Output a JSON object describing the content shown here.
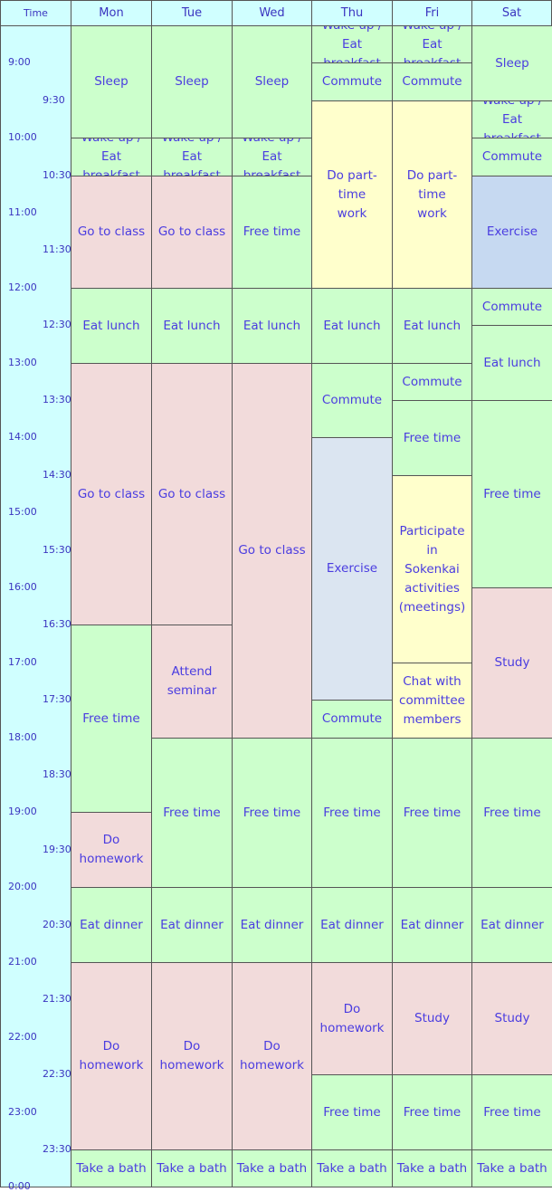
{
  "header": {
    "time_label": "Time",
    "days": [
      "Mon",
      "Tue",
      "Wed",
      "Thu",
      "Fri",
      "Sat"
    ]
  },
  "time_labels": [
    "9:00",
    "9:30",
    "10:00",
    "10:30",
    "11:00",
    "11:30",
    "12:00",
    "12:30",
    "13:00",
    "13:30",
    "14:00",
    "14:30",
    "15:00",
    "15:30",
    "16:00",
    "16:30",
    "17:00",
    "17:30",
    "18:00",
    "18:30",
    "19:00",
    "19:30",
    "20:00",
    "20:30",
    "21:00",
    "21:30",
    "22:00",
    "22:30",
    "23:00",
    "23:30",
    "0:00"
  ],
  "colors": {
    "green": "#ccffcc",
    "pink": "#f2dbdb",
    "yellow": "#ffffcc",
    "blue": "#c6d9f1",
    "lightblue": "#dbe5f1",
    "time_bg": "#d0ffff",
    "text": "#4a3ce0"
  },
  "schedule": [
    [
      {
        "label": "Sleep",
        "start": "8:30",
        "end": "10:00",
        "color": "green"
      },
      {
        "label": "Wake up /\nEat breakfast",
        "start": "10:00",
        "end": "10:30",
        "color": "green"
      },
      {
        "label": "Go to class",
        "start": "10:30",
        "end": "12:00",
        "color": "pink"
      },
      {
        "label": "Eat lunch",
        "start": "12:00",
        "end": "13:00",
        "color": "green"
      },
      {
        "label": "Go to class",
        "start": "13:00",
        "end": "16:30",
        "color": "pink"
      },
      {
        "label": "Free time",
        "start": "16:30",
        "end": "19:00",
        "color": "green"
      },
      {
        "label": "Do\nhomework",
        "start": "19:00",
        "end": "20:00",
        "color": "pink"
      },
      {
        "label": "Eat dinner",
        "start": "20:00",
        "end": "21:00",
        "color": "green"
      },
      {
        "label": "Do\nhomework",
        "start": "21:00",
        "end": "23:30",
        "color": "pink"
      },
      {
        "label": "Take a bath",
        "start": "23:30",
        "end": "24:00",
        "color": "green"
      }
    ],
    [
      {
        "label": "Sleep",
        "start": "8:30",
        "end": "10:00",
        "color": "green"
      },
      {
        "label": "Wake up /\nEat breakfast",
        "start": "10:00",
        "end": "10:30",
        "color": "green"
      },
      {
        "label": "Go to class",
        "start": "10:30",
        "end": "12:00",
        "color": "pink"
      },
      {
        "label": "Eat lunch",
        "start": "12:00",
        "end": "13:00",
        "color": "green"
      },
      {
        "label": "Go to class",
        "start": "13:00",
        "end": "16:30",
        "color": "pink"
      },
      {
        "label": "Attend\nseminar",
        "start": "16:30",
        "end": "18:00",
        "color": "pink"
      },
      {
        "label": "Free time",
        "start": "18:00",
        "end": "20:00",
        "color": "green"
      },
      {
        "label": "Eat dinner",
        "start": "20:00",
        "end": "21:00",
        "color": "green"
      },
      {
        "label": "Do\nhomework",
        "start": "21:00",
        "end": "23:30",
        "color": "pink"
      },
      {
        "label": "Take a bath",
        "start": "23:30",
        "end": "24:00",
        "color": "green"
      }
    ],
    [
      {
        "label": "Sleep",
        "start": "8:30",
        "end": "10:00",
        "color": "green"
      },
      {
        "label": "Wake up /\nEat breakfast",
        "start": "10:00",
        "end": "10:30",
        "color": "green"
      },
      {
        "label": "Free time",
        "start": "10:30",
        "end": "12:00",
        "color": "green"
      },
      {
        "label": "Eat lunch",
        "start": "12:00",
        "end": "13:00",
        "color": "green"
      },
      {
        "label": "Go to class",
        "start": "13:00",
        "end": "18:00",
        "color": "pink"
      },
      {
        "label": "Free time",
        "start": "18:00",
        "end": "20:00",
        "color": "green"
      },
      {
        "label": "Eat dinner",
        "start": "20:00",
        "end": "21:00",
        "color": "green"
      },
      {
        "label": "Do\nhomework",
        "start": "21:00",
        "end": "23:30",
        "color": "pink"
      },
      {
        "label": "Take a bath",
        "start": "23:30",
        "end": "24:00",
        "color": "green"
      }
    ],
    [
      {
        "label": "Wake up /\nEat breakfast",
        "start": "8:30",
        "end": "9:00",
        "color": "green"
      },
      {
        "label": "Commute",
        "start": "9:00",
        "end": "9:30",
        "color": "green"
      },
      {
        "label": "Do part-time\nwork",
        "start": "9:30",
        "end": "12:00",
        "color": "yellow"
      },
      {
        "label": "Eat lunch",
        "start": "12:00",
        "end": "13:00",
        "color": "green"
      },
      {
        "label": "Commute",
        "start": "13:00",
        "end": "14:00",
        "color": "green"
      },
      {
        "label": "Exercise",
        "start": "14:00",
        "end": "17:30",
        "color": "lightblue"
      },
      {
        "label": "Commute",
        "start": "17:30",
        "end": "18:00",
        "color": "green"
      },
      {
        "label": "Free time",
        "start": "18:00",
        "end": "20:00",
        "color": "green"
      },
      {
        "label": "Eat dinner",
        "start": "20:00",
        "end": "21:00",
        "color": "green"
      },
      {
        "label": "Do\nhomework",
        "start": "21:00",
        "end": "22:30",
        "color": "pink"
      },
      {
        "label": "Free time",
        "start": "22:30",
        "end": "23:30",
        "color": "green"
      },
      {
        "label": "Take a bath",
        "start": "23:30",
        "end": "24:00",
        "color": "green"
      }
    ],
    [
      {
        "label": "Wake up /\nEat breakfast",
        "start": "8:30",
        "end": "9:00",
        "color": "green"
      },
      {
        "label": "Commute",
        "start": "9:00",
        "end": "9:30",
        "color": "green"
      },
      {
        "label": "Do part-time\nwork",
        "start": "9:30",
        "end": "12:00",
        "color": "yellow"
      },
      {
        "label": "Eat lunch",
        "start": "12:00",
        "end": "13:00",
        "color": "green"
      },
      {
        "label": "Commute",
        "start": "13:00",
        "end": "13:30",
        "color": "green"
      },
      {
        "label": "Free time",
        "start": "13:30",
        "end": "14:30",
        "color": "green"
      },
      {
        "label": "Participate in\nSokenkai\nactivities\n(meetings)",
        "start": "14:30",
        "end": "17:00",
        "color": "yellow"
      },
      {
        "label": "Chat with\ncommittee\nmembers",
        "start": "17:00",
        "end": "18:00",
        "color": "yellow"
      },
      {
        "label": "Free time",
        "start": "18:00",
        "end": "20:00",
        "color": "green"
      },
      {
        "label": "Eat dinner",
        "start": "20:00",
        "end": "21:00",
        "color": "green"
      },
      {
        "label": "Study",
        "start": "21:00",
        "end": "22:30",
        "color": "pink"
      },
      {
        "label": "Free time",
        "start": "22:30",
        "end": "23:30",
        "color": "green"
      },
      {
        "label": "Take a bath",
        "start": "23:30",
        "end": "24:00",
        "color": "green"
      }
    ],
    [
      {
        "label": "Sleep",
        "start": "8:30",
        "end": "9:30",
        "color": "green"
      },
      {
        "label": "Wake up /\nEat breakfast",
        "start": "9:30",
        "end": "10:00",
        "color": "green"
      },
      {
        "label": "Commute",
        "start": "10:00",
        "end": "10:30",
        "color": "green"
      },
      {
        "label": "Exercise",
        "start": "10:30",
        "end": "12:00",
        "color": "blue"
      },
      {
        "label": "Commute",
        "start": "12:00",
        "end": "12:30",
        "color": "green"
      },
      {
        "label": "Eat lunch",
        "start": "12:30",
        "end": "13:30",
        "color": "green"
      },
      {
        "label": "Free time",
        "start": "13:30",
        "end": "16:00",
        "color": "green"
      },
      {
        "label": "Study",
        "start": "16:00",
        "end": "18:00",
        "color": "pink"
      },
      {
        "label": "Free time",
        "start": "18:00",
        "end": "20:00",
        "color": "green"
      },
      {
        "label": "Eat dinner",
        "start": "20:00",
        "end": "21:00",
        "color": "green"
      },
      {
        "label": "Study",
        "start": "21:00",
        "end": "22:30",
        "color": "pink"
      },
      {
        "label": "Free time",
        "start": "22:30",
        "end": "23:30",
        "color": "green"
      },
      {
        "label": "Take a bath",
        "start": "23:30",
        "end": "24:00",
        "color": "green"
      }
    ]
  ]
}
